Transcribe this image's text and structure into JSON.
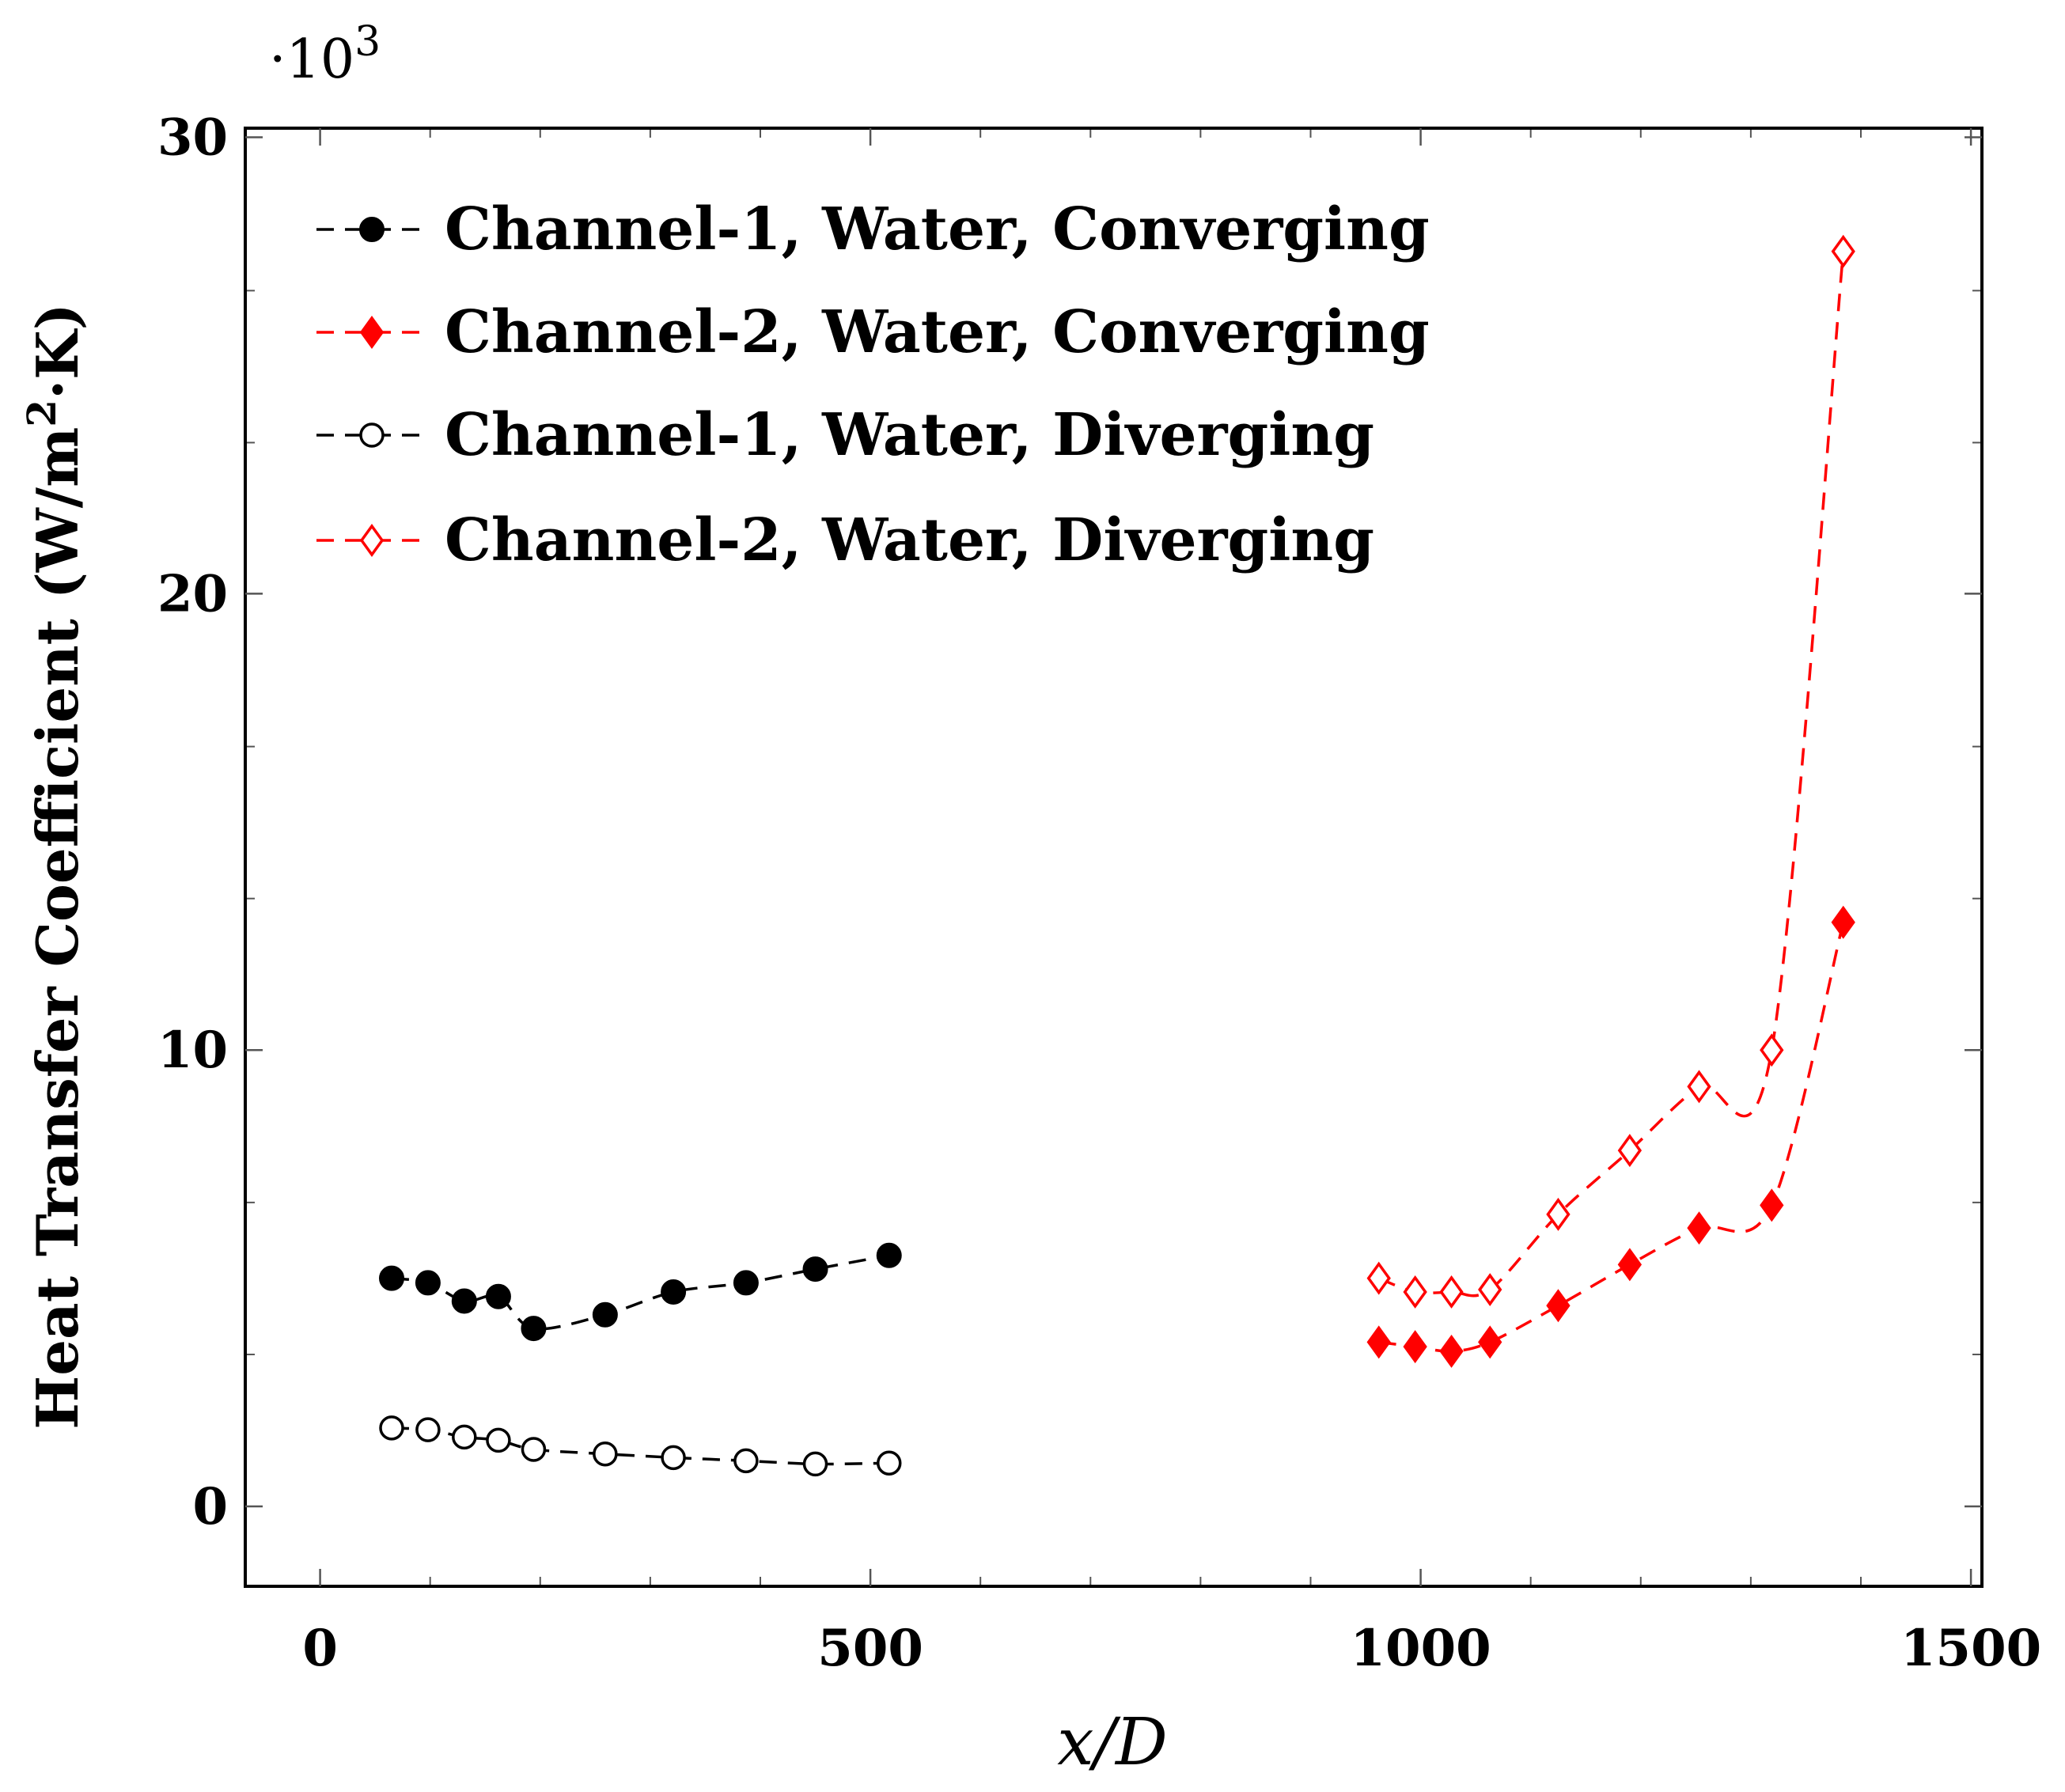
{
  "chart_data": {
    "type": "line",
    "title": "",
    "xlabel": "x/D",
    "ylabel": "Heat Transfer Coefficient (W/m²·K)",
    "ylabel_parts": {
      "before": "Heat Transfer Coefficient (W/m",
      "sup": "2",
      "after": "·K)"
    },
    "y_multiplier": {
      "prefix": "·10",
      "exp": "3"
    },
    "xlim": [
      -68,
      1510
    ],
    "ylim": [
      -1.75,
      30.2
    ],
    "xticks": [
      0,
      500,
      1000,
      1500
    ],
    "yticks": [
      0,
      10,
      20,
      30
    ],
    "x_minor_step": 100,
    "y_minor_step": 3.33,
    "grid": false,
    "legend_position": "top-left",
    "series": [
      {
        "name": "Channel-1, Water, Converging",
        "color": "#000000",
        "marker": "circle-filled",
        "x": [
          65,
          98,
          131,
          162,
          194,
          259,
          321,
          387,
          450,
          517
        ],
        "y": [
          5.0,
          4.9,
          4.5,
          4.6,
          3.9,
          4.2,
          4.7,
          4.9,
          5.2,
          5.5
        ]
      },
      {
        "name": "Channel-2, Water, Converging",
        "color": "#ff0000",
        "marker": "diamond-filled",
        "x": [
          962,
          995,
          1028,
          1063,
          1125,
          1190,
          1253,
          1319,
          1384
        ],
        "y": [
          3.6,
          3.5,
          3.4,
          3.6,
          4.4,
          5.3,
          6.1,
          6.6,
          12.8
        ]
      },
      {
        "name": "Channel-1, Water, Diverging",
        "color": "#000000",
        "marker": "circle-open",
        "x": [
          65,
          98,
          131,
          162,
          194,
          259,
          321,
          387,
          450,
          517
        ],
        "y": [
          1.72,
          1.68,
          1.52,
          1.45,
          1.25,
          1.15,
          1.07,
          1.0,
          0.93,
          0.95
        ]
      },
      {
        "name": "Channel-2, Water, Diverging",
        "color": "#ff0000",
        "marker": "diamond-open",
        "x": [
          962,
          995,
          1028,
          1063,
          1125,
          1190,
          1253,
          1319,
          1384
        ],
        "y": [
          5.0,
          4.7,
          4.7,
          4.75,
          6.4,
          7.8,
          9.2,
          10.0,
          27.5
        ]
      }
    ]
  }
}
